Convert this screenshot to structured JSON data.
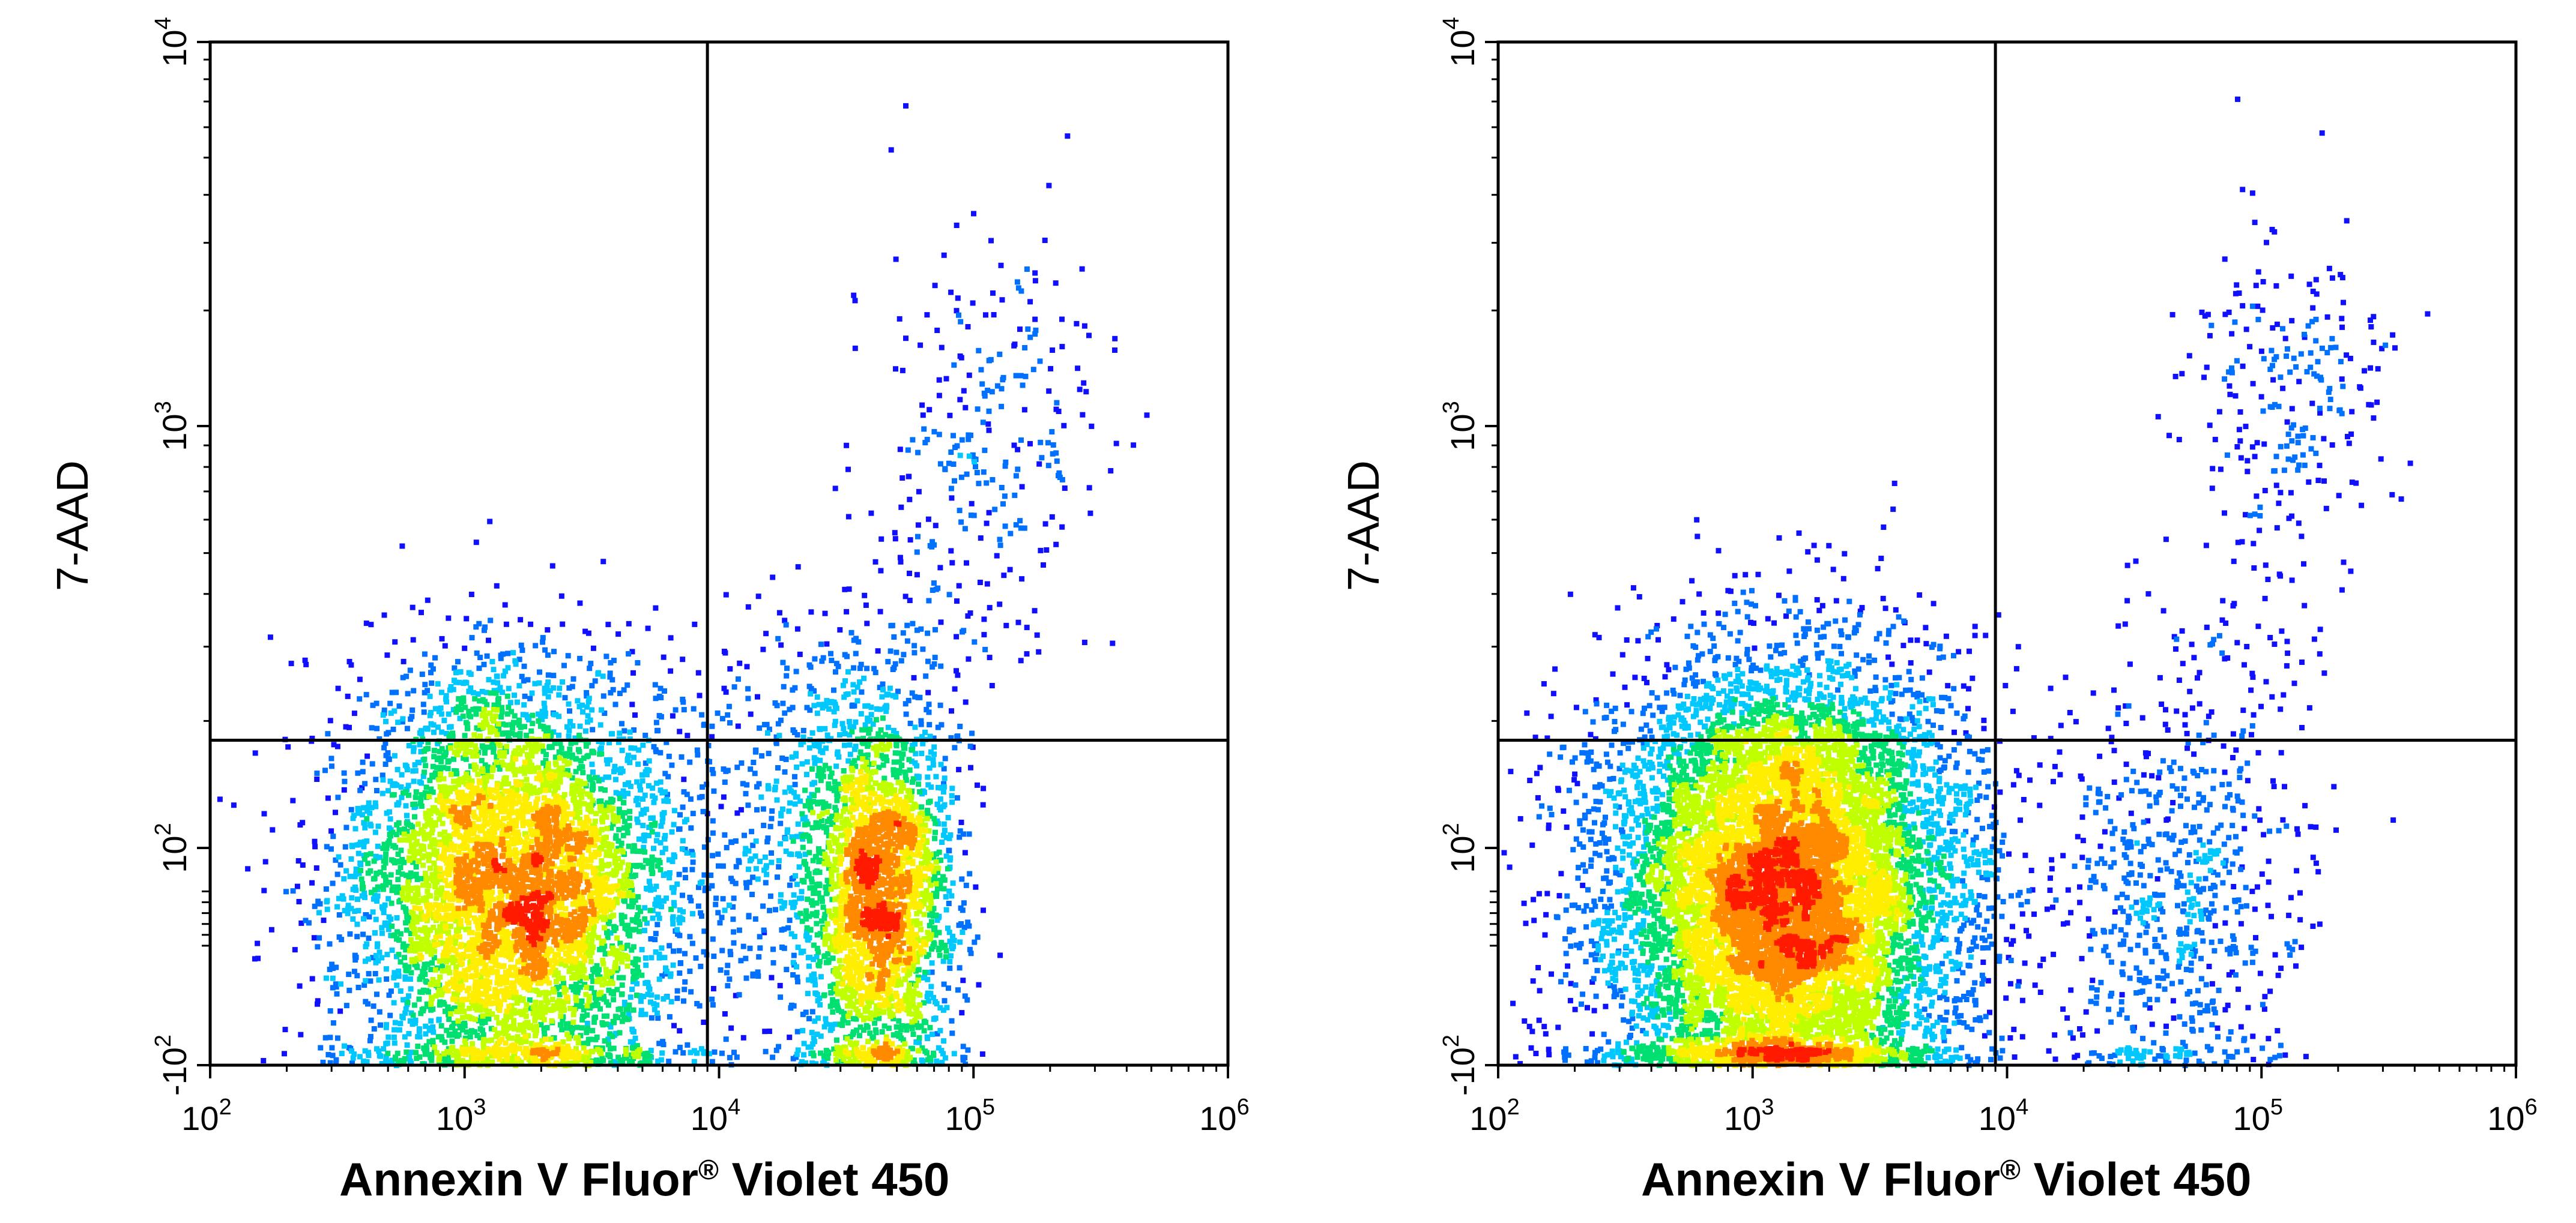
{
  "chart_data": [
    {
      "type": "scatter",
      "subtype": "flow-cytometry-density-dot-plot",
      "xlabel": {
        "main": "Annexin V Fluor",
        "reg": "®",
        "rest": " Violet 450"
      },
      "ylabel": "7-AAD",
      "x_scale": "log",
      "y_scale": "biexponential",
      "x_ticks": [
        {
          "value": 100,
          "base": "10",
          "exp": "2"
        },
        {
          "value": 1000,
          "base": "10",
          "exp": "3"
        },
        {
          "value": 10000,
          "base": "10",
          "exp": "4"
        },
        {
          "value": 100000,
          "base": "10",
          "exp": "5"
        },
        {
          "value": 1000000,
          "base": "10",
          "exp": "6"
        }
      ],
      "y_ticks": [
        {
          "value": -100,
          "base": "-10",
          "exp": "2"
        },
        {
          "value": 100,
          "base": "10",
          "exp": "2"
        },
        {
          "value": 1000,
          "base": "10",
          "exp": "3"
        },
        {
          "value": 10000,
          "base": "10",
          "exp": "4"
        }
      ],
      "xlim": [
        100,
        1000000
      ],
      "ylim": [
        -100,
        10000
      ],
      "gate": {
        "x": 9000,
        "y": 180
      },
      "populations": [
        {
          "cx": 1600,
          "cy": 55,
          "sx": 0.33,
          "sy": 0.3,
          "n": 5200
        },
        {
          "cx": 42000,
          "cy": 55,
          "sx": 0.15,
          "sy": 0.3,
          "n": 2600
        },
        {
          "cx": 18000,
          "cy": 130,
          "sx": 0.2,
          "sy": 0.32,
          "n": 400
        },
        {
          "cx": 1200,
          "cy": 170,
          "sx": 0.3,
          "sy": 0.2,
          "n": 420
        },
        {
          "cx": 110000,
          "cy": 1000,
          "sx": 0.2,
          "sy": 0.3,
          "n": 260
        },
        {
          "cx": 70000,
          "cy": 380,
          "sx": 0.15,
          "sy": 0.2,
          "n": 40
        }
      ]
    },
    {
      "type": "scatter",
      "subtype": "flow-cytometry-density-dot-plot",
      "xlabel": {
        "main": "Annexin V Fluor",
        "reg": "®",
        "rest": " Violet 450"
      },
      "ylabel": "7-AAD",
      "x_scale": "log",
      "y_scale": "biexponential",
      "x_ticks": [
        {
          "value": 100,
          "base": "10",
          "exp": "2"
        },
        {
          "value": 1000,
          "base": "10",
          "exp": "3"
        },
        {
          "value": 10000,
          "base": "10",
          "exp": "4"
        },
        {
          "value": 100000,
          "base": "10",
          "exp": "5"
        },
        {
          "value": 1000000,
          "base": "10",
          "exp": "6"
        }
      ],
      "y_ticks": [
        {
          "value": -100,
          "base": "-10",
          "exp": "2"
        },
        {
          "value": 100,
          "base": "10",
          "exp": "2"
        },
        {
          "value": 1000,
          "base": "10",
          "exp": "3"
        },
        {
          "value": 10000,
          "base": "10",
          "exp": "4"
        }
      ],
      "xlim": [
        100,
        1000000
      ],
      "ylim": [
        -100,
        10000
      ],
      "gate": {
        "x": 9000,
        "y": 180
      },
      "populations": [
        {
          "cx": 1300,
          "cy": 55,
          "sx": 0.35,
          "sy": 0.32,
          "n": 9000
        },
        {
          "cx": 1500,
          "cy": 175,
          "sx": 0.35,
          "sy": 0.18,
          "n": 600
        },
        {
          "cx": 45000,
          "cy": 45,
          "sx": 0.25,
          "sy": 0.35,
          "n": 700
        },
        {
          "cx": 130000,
          "cy": 1300,
          "sx": 0.2,
          "sy": 0.25,
          "n": 230
        },
        {
          "cx": 90000,
          "cy": 350,
          "sx": 0.18,
          "sy": 0.25,
          "n": 60
        }
      ]
    }
  ],
  "colors": {
    "density_scale": [
      "#1010ff",
      "#0070ff",
      "#00c8ff",
      "#00e070",
      "#c0ff00",
      "#ffee00",
      "#ff8a00",
      "#ff1a00"
    ],
    "axis": "#000000"
  }
}
